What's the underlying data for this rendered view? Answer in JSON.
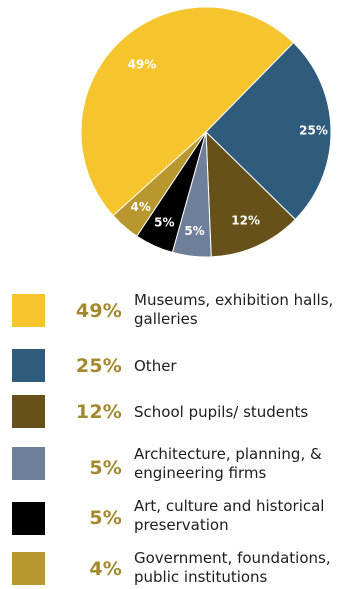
{
  "chart_data": {
    "type": "pie",
    "categories": [
      "Museums, exhibition halls, galleries",
      "Other",
      "School pupils/ students",
      "Architecture, planning, & engineering firms",
      "Art, culture and historical preservation",
      "Government, foundations, public institutions"
    ],
    "values": [
      49,
      25,
      12,
      5,
      5,
      4
    ],
    "value_labels": [
      "49%",
      "25%",
      "12%",
      "5%",
      "5%",
      "4%"
    ],
    "colors": [
      "#f6c52e",
      "#2f5b7d",
      "#655119",
      "#6e7f99",
      "#000000",
      "#b8972f"
    ],
    "legend_placement": "bottom"
  }
}
